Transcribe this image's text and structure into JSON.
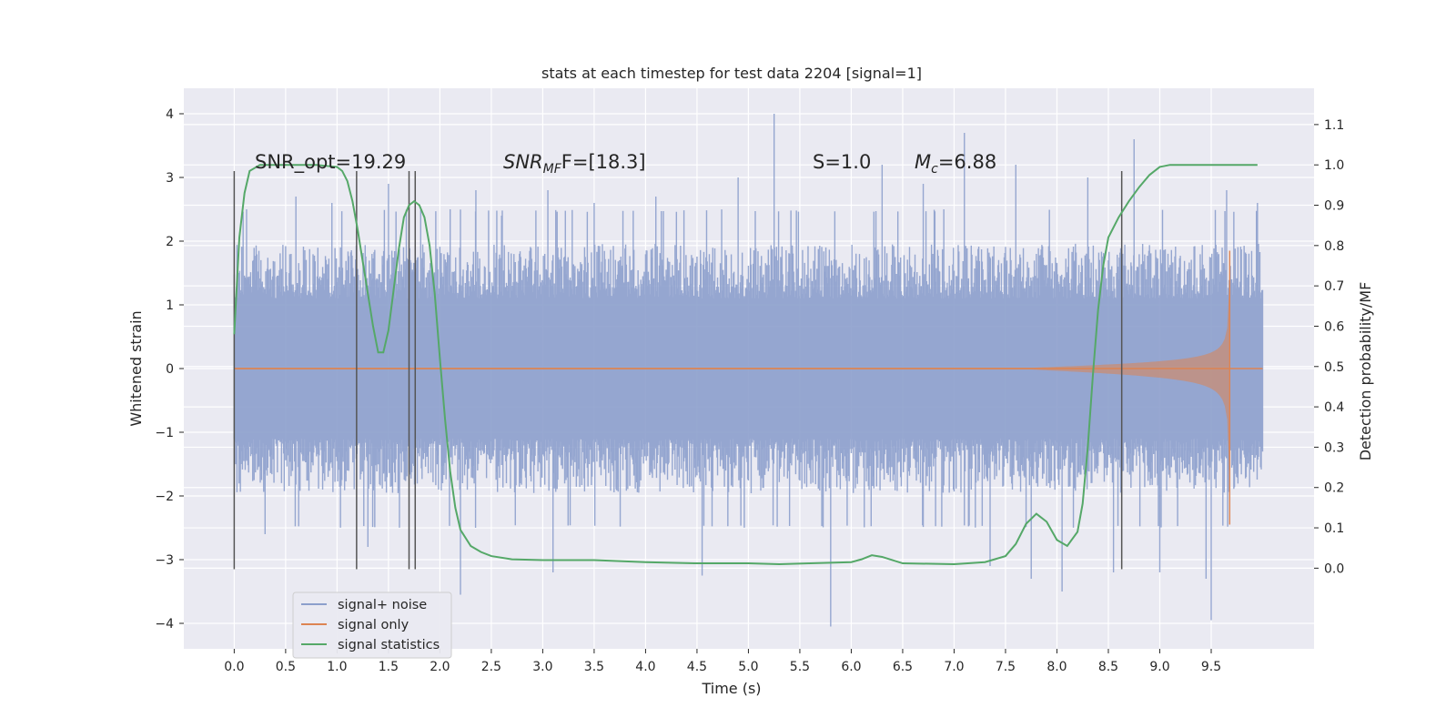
{
  "chart_data": {
    "type": "line",
    "title": "stats at each timestep for test data 2204 [signal=1]",
    "xlabel": "Time (s)",
    "ylabel": "Whitened strain",
    "ylabel_right": "Detection probability/MF",
    "xlim": [
      -0.49,
      10.5
    ],
    "ylim": [
      -4.4,
      4.4
    ],
    "ylim_right": [
      -0.2,
      1.19
    ],
    "x_ticks": [
      "0.0",
      "0.5",
      "1.0",
      "1.5",
      "2.0",
      "2.5",
      "3.0",
      "3.5",
      "4.0",
      "4.5",
      "5.0",
      "5.5",
      "6.0",
      "6.5",
      "7.0",
      "7.5",
      "8.0",
      "8.5",
      "9.0",
      "9.5"
    ],
    "y_ticks": [
      4,
      3,
      2,
      1,
      0,
      -1,
      -2,
      -3,
      -4
    ],
    "y_tick_labels": [
      "4",
      "3",
      "2",
      "1",
      "0",
      "−1",
      "−2",
      "−3",
      "−4"
    ],
    "y_right_ticks": [
      1.1,
      1.0,
      0.9,
      0.8,
      0.7,
      0.6,
      0.5,
      0.4,
      0.3,
      0.2,
      0.1,
      0.0
    ],
    "y_right_tick_labels": [
      "1.1",
      "1.0",
      "0.9",
      "0.8",
      "0.7",
      "0.6",
      "0.5",
      "0.4",
      "0.3",
      "0.2",
      "0.1",
      "0.0"
    ],
    "annotations": {
      "snr_opt": "SNR_opt=19.29",
      "snr_mf_base": "SNR",
      "snr_mf_sub": "MF",
      "snr_mf_rest": "F=[18.3]",
      "s_label": "S=1.0",
      "mc_base": "M",
      "mc_sub": "c",
      "mc_rest": "=6.88"
    },
    "vlines_x": [
      0.0,
      1.19,
      1.7,
      1.76,
      8.63
    ],
    "vline_range": [
      -3.15,
      3.1
    ],
    "series": [
      {
        "name": "signal+ noise",
        "color": "#8c9fcc",
        "x_range": [
          0.0,
          10.0
        ],
        "band_low": -2.0,
        "band_high": 2.0,
        "peaks": [
          {
            "x": 0.12,
            "y": 2.5
          },
          {
            "x": 0.3,
            "y": -2.6
          },
          {
            "x": 0.6,
            "y": 2.7
          },
          {
            "x": 0.95,
            "y": 2.6
          },
          {
            "x": 1.3,
            "y": -2.8
          },
          {
            "x": 1.5,
            "y": 2.9
          },
          {
            "x": 2.1,
            "y": 2.5
          },
          {
            "x": 2.2,
            "y": -3.55
          },
          {
            "x": 2.35,
            "y": 2.8
          },
          {
            "x": 2.6,
            "y": 2.4
          },
          {
            "x": 3.05,
            "y": 2.8
          },
          {
            "x": 3.1,
            "y": -3.2
          },
          {
            "x": 3.5,
            "y": 2.6
          },
          {
            "x": 4.1,
            "y": 2.7
          },
          {
            "x": 4.55,
            "y": -3.25
          },
          {
            "x": 4.9,
            "y": 3.0
          },
          {
            "x": 5.25,
            "y": 4.0
          },
          {
            "x": 5.8,
            "y": -4.05
          },
          {
            "x": 6.3,
            "y": 3.2
          },
          {
            "x": 6.7,
            "y": 2.9
          },
          {
            "x": 6.9,
            "y": 2.5
          },
          {
            "x": 7.1,
            "y": 3.7
          },
          {
            "x": 7.35,
            "y": -3.1
          },
          {
            "x": 7.6,
            "y": 3.2
          },
          {
            "x": 7.75,
            "y": -3.3
          },
          {
            "x": 8.05,
            "y": -3.5
          },
          {
            "x": 8.3,
            "y": 3.0
          },
          {
            "x": 8.55,
            "y": -3.2
          },
          {
            "x": 8.75,
            "y": 3.6
          },
          {
            "x": 9.0,
            "y": -3.2
          },
          {
            "x": 9.45,
            "y": -3.3
          },
          {
            "x": 9.5,
            "y": -3.95
          },
          {
            "x": 9.65,
            "y": 2.8
          },
          {
            "x": 9.95,
            "y": 2.6
          }
        ]
      },
      {
        "name": "signal only",
        "color": "#dd8452",
        "x_range": [
          0.0,
          10.0
        ],
        "chirp_end": 9.68,
        "amplitude_at_end": 1.8
      },
      {
        "name": "signal statistics",
        "color": "#55a868",
        "axis": "right",
        "x": [
          0.0,
          0.05,
          0.1,
          0.15,
          0.25,
          0.5,
          0.8,
          1.0,
          1.05,
          1.1,
          1.15,
          1.2,
          1.25,
          1.3,
          1.35,
          1.4,
          1.45,
          1.5,
          1.55,
          1.6,
          1.65,
          1.7,
          1.75,
          1.8,
          1.85,
          1.9,
          1.95,
          2.0,
          2.05,
          2.1,
          2.15,
          2.2,
          2.3,
          2.4,
          2.5,
          2.7,
          3.0,
          3.5,
          4.0,
          4.5,
          5.0,
          5.3,
          5.6,
          6.0,
          6.1,
          6.2,
          6.3,
          6.5,
          7.0,
          7.3,
          7.5,
          7.6,
          7.7,
          7.8,
          7.9,
          8.0,
          8.1,
          8.2,
          8.25,
          8.3,
          8.35,
          8.4,
          8.45,
          8.5,
          8.6,
          8.7,
          8.8,
          8.9,
          9.0,
          9.1,
          9.2,
          9.5,
          9.75,
          9.95
        ],
        "values": [
          0.58,
          0.82,
          0.93,
          0.985,
          1.0,
          1.0,
          1.0,
          0.995,
          0.985,
          0.96,
          0.91,
          0.84,
          0.76,
          0.68,
          0.6,
          0.535,
          0.535,
          0.59,
          0.69,
          0.79,
          0.87,
          0.9,
          0.91,
          0.9,
          0.87,
          0.8,
          0.68,
          0.52,
          0.37,
          0.24,
          0.15,
          0.095,
          0.055,
          0.04,
          0.03,
          0.022,
          0.02,
          0.02,
          0.015,
          0.012,
          0.012,
          0.01,
          0.012,
          0.015,
          0.022,
          0.032,
          0.028,
          0.012,
          0.01,
          0.015,
          0.03,
          0.06,
          0.11,
          0.135,
          0.115,
          0.07,
          0.055,
          0.09,
          0.16,
          0.3,
          0.48,
          0.64,
          0.75,
          0.82,
          0.87,
          0.91,
          0.945,
          0.975,
          0.995,
          1.0,
          1.0,
          1.0,
          1.0,
          1.0
        ]
      }
    ],
    "legend_position": "lower-left"
  }
}
